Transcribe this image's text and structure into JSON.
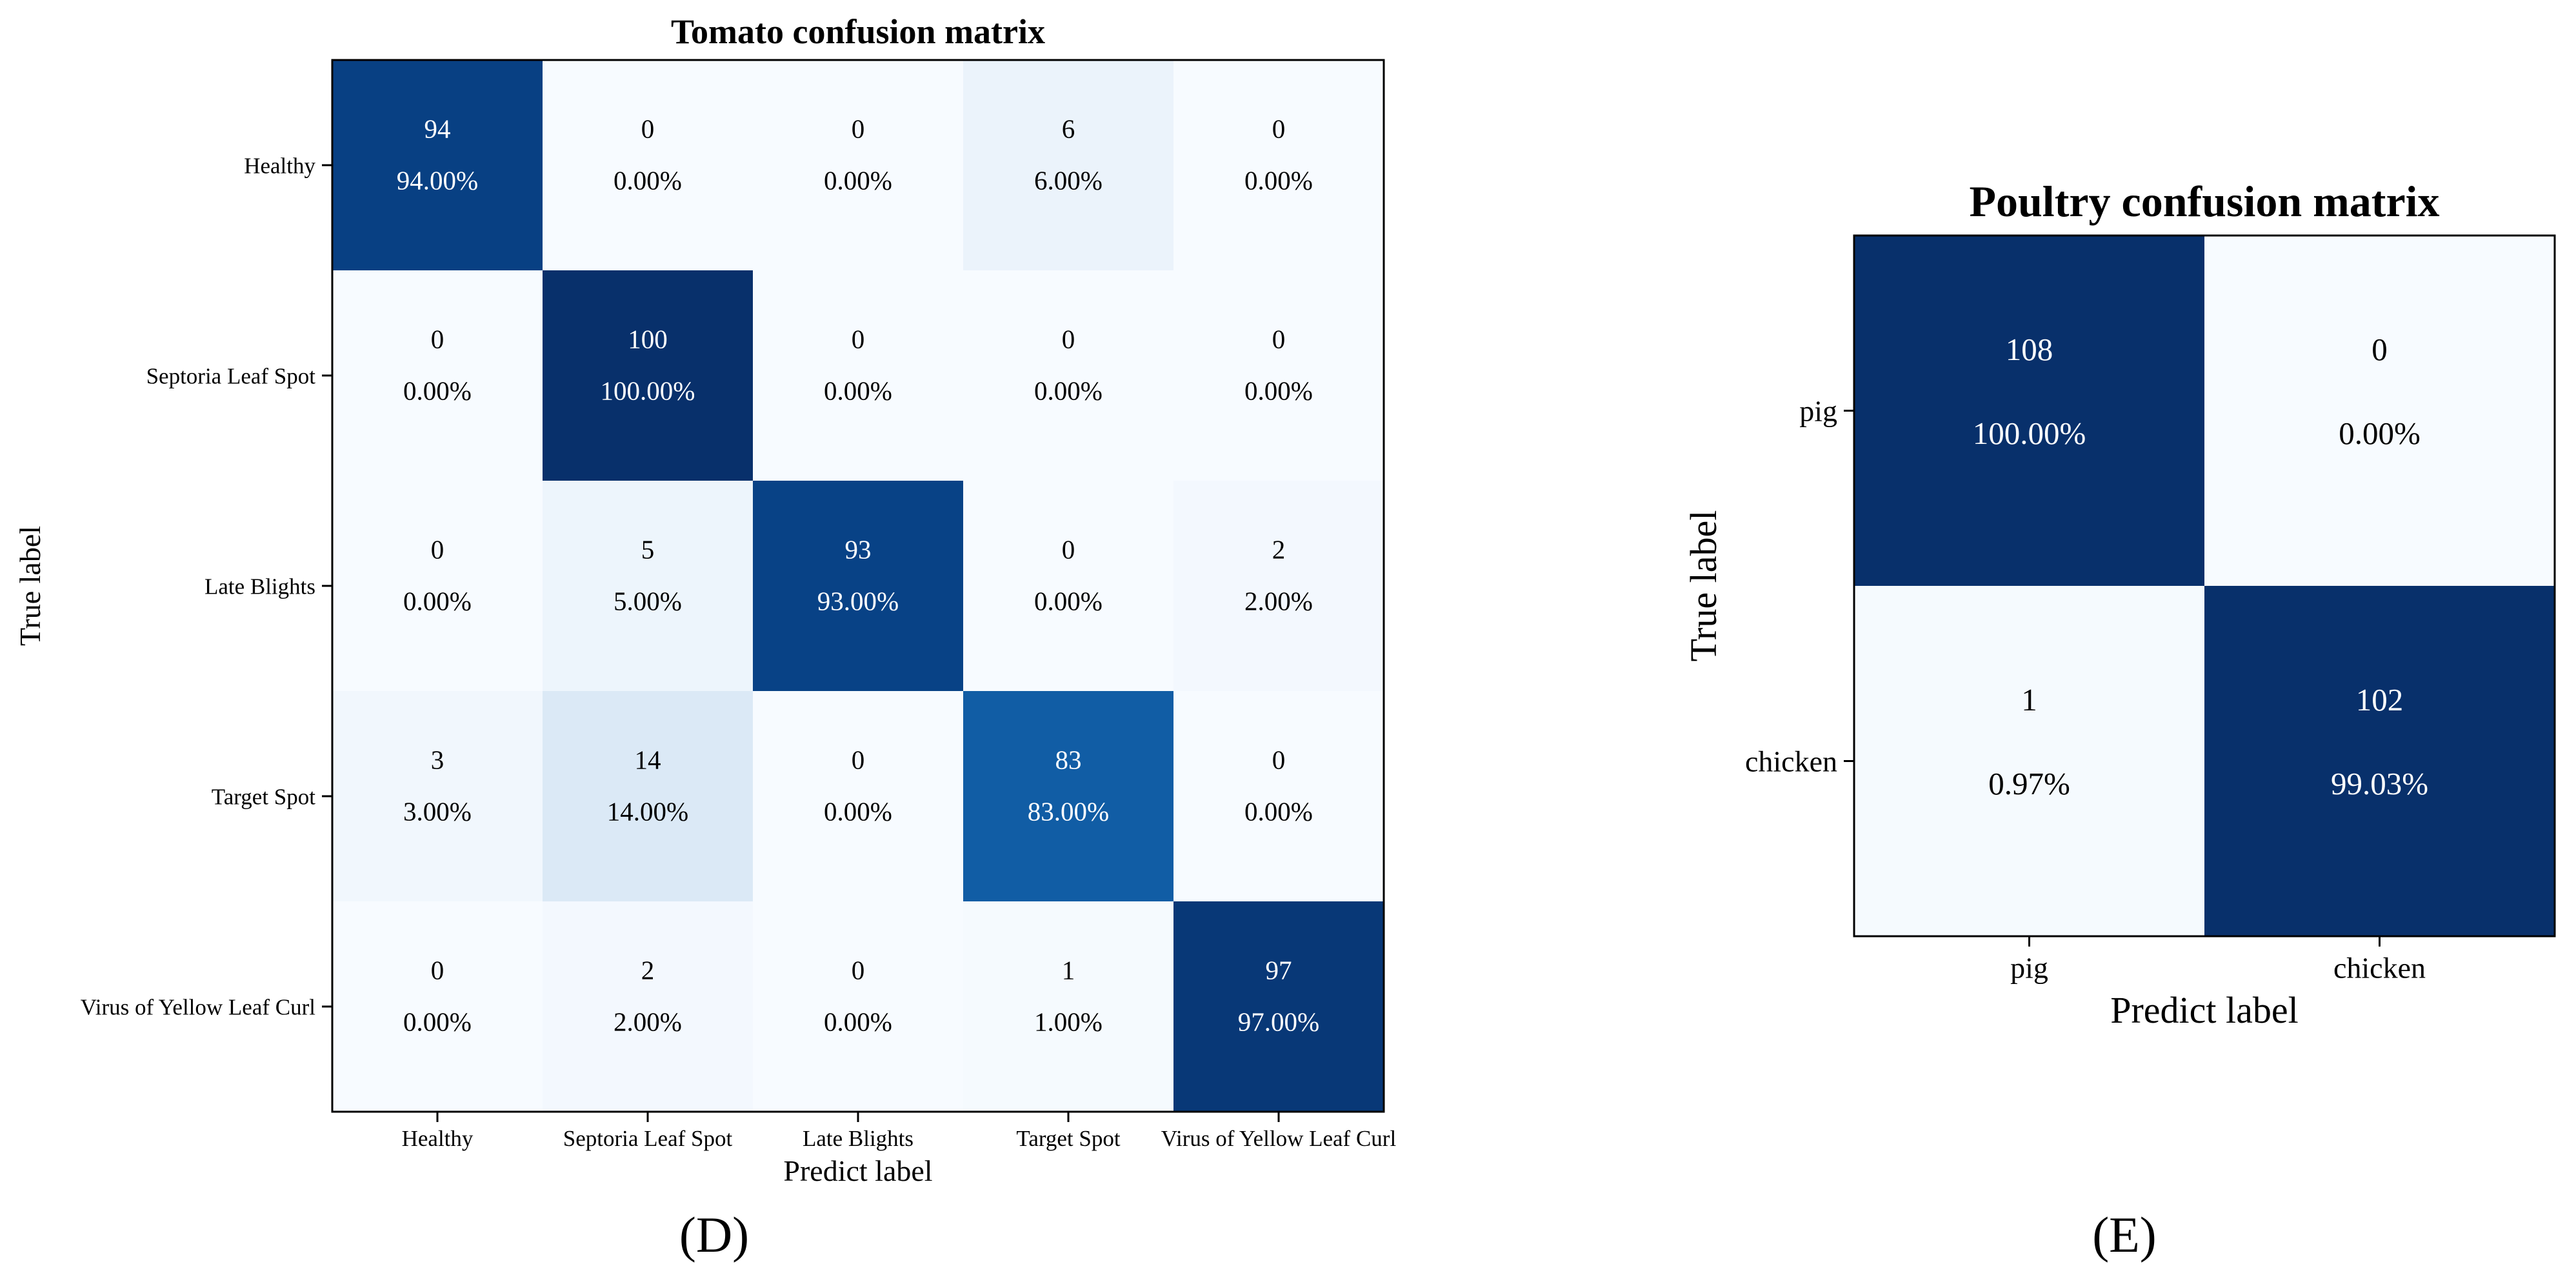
{
  "chart_data": [
    {
      "type": "heatmap",
      "panel_label": "(D)",
      "title": "Tomato confusion matrix",
      "xlabel": "Predict label",
      "ylabel": "True label",
      "categories": [
        "Healthy",
        "Septoria Leaf Spot",
        "Late Blights",
        "Target Spot",
        "Virus of Yellow Leaf Curl"
      ],
      "counts": [
        [
          94,
          0,
          0,
          6,
          0
        ],
        [
          0,
          100,
          0,
          0,
          0
        ],
        [
          0,
          5,
          93,
          0,
          2
        ],
        [
          3,
          14,
          0,
          83,
          0
        ],
        [
          0,
          2,
          0,
          1,
          97
        ]
      ],
      "percentages": [
        [
          "94.00%",
          "0.00%",
          "0.00%",
          "6.00%",
          "0.00%"
        ],
        [
          "0.00%",
          "100.00%",
          "0.00%",
          "0.00%",
          "0.00%"
        ],
        [
          "0.00%",
          "5.00%",
          "93.00%",
          "0.00%",
          "2.00%"
        ],
        [
          "3.00%",
          "14.00%",
          "0.00%",
          "83.00%",
          "0.00%"
        ],
        [
          "0.00%",
          "2.00%",
          "0.00%",
          "1.00%",
          "97.00%"
        ]
      ],
      "color_range": [
        0,
        100
      ]
    },
    {
      "type": "heatmap",
      "panel_label": "(E)",
      "title": "Poultry confusion matrix",
      "xlabel": "Predict label",
      "ylabel": "True label",
      "categories": [
        "pig",
        "chicken"
      ],
      "counts": [
        [
          108,
          0
        ],
        [
          1,
          102
        ]
      ],
      "percentages": [
        [
          "100.00%",
          "0.00%"
        ],
        [
          "0.97%",
          "99.03%"
        ]
      ],
      "color_range": [
        0,
        100
      ]
    }
  ]
}
